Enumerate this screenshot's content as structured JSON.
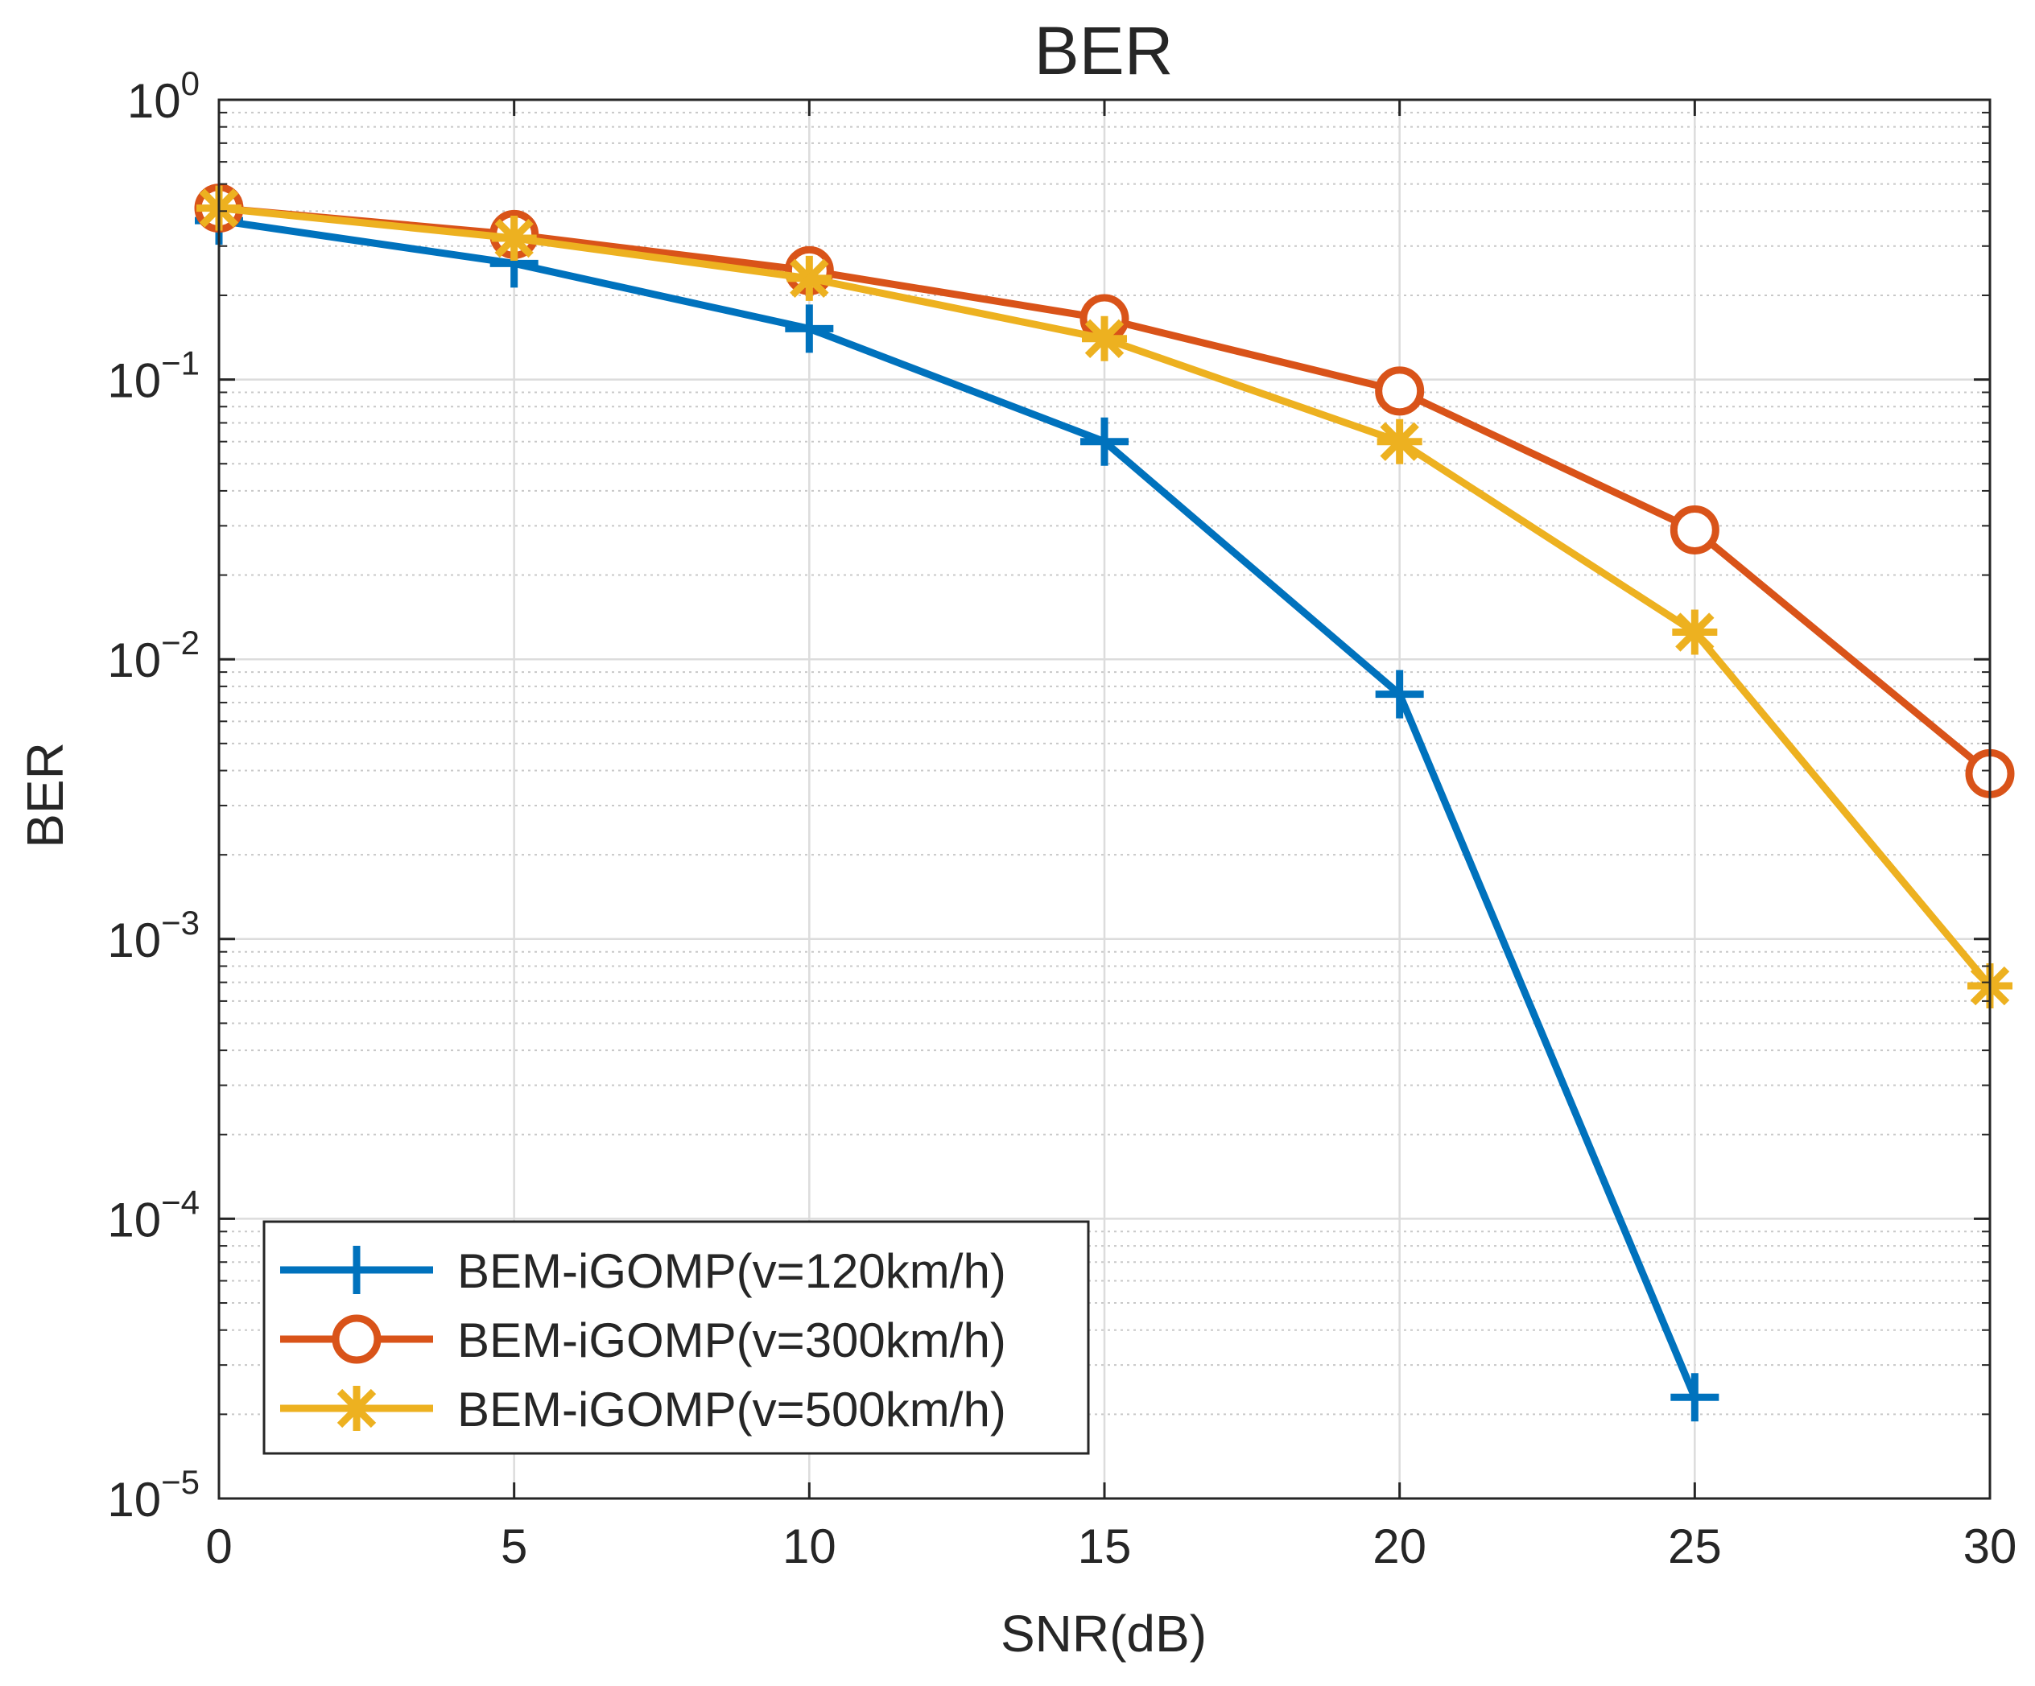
{
  "chart_data": {
    "type": "line",
    "title": "BER",
    "xlabel": "SNR(dB)",
    "ylabel": "BER",
    "xlim": [
      0,
      30
    ],
    "ylim": [
      1e-05,
      1
    ],
    "yscale": "log",
    "grid": true,
    "minor_grid": true,
    "legend_position": "bottom-left",
    "x_ticks": [
      0,
      5,
      10,
      15,
      20,
      25,
      30
    ],
    "x_tick_labels": [
      "0",
      "5",
      "10",
      "15",
      "20",
      "25",
      "30"
    ],
    "y_ticks": [
      1,
      0.1,
      0.01,
      0.001,
      0.0001,
      1e-05
    ],
    "y_tick_labels": [
      {
        "base": "10",
        "exp": "0"
      },
      {
        "base": "10",
        "exp": "−1"
      },
      {
        "base": "10",
        "exp": "−2"
      },
      {
        "base": "10",
        "exp": "−3"
      },
      {
        "base": "10",
        "exp": "−4"
      },
      {
        "base": "10",
        "exp": "−5"
      }
    ],
    "series": [
      {
        "name": "BEM-iGOMP(v=120km/h)",
        "marker": "plus",
        "color": "#0072BD",
        "x": [
          0,
          5,
          10,
          15,
          20,
          25
        ],
        "y": [
          0.37,
          0.26,
          0.152,
          0.06,
          0.0075,
          2.3e-05
        ]
      },
      {
        "name": "BEM-iGOMP(v=300km/h)",
        "marker": "circle",
        "color": "#D95319",
        "x": [
          0,
          5,
          10,
          15,
          20,
          25,
          30
        ],
        "y": [
          0.41,
          0.33,
          0.245,
          0.165,
          0.091,
          0.029,
          0.0039
        ]
      },
      {
        "name": "BEM-iGOMP(v=500km/h)",
        "marker": "asterisk",
        "color": "#EDB120",
        "x": [
          0,
          5,
          10,
          15,
          20,
          25,
          30
        ],
        "y": [
          0.41,
          0.32,
          0.23,
          0.14,
          0.06,
          0.0125,
          0.00068
        ]
      }
    ]
  }
}
